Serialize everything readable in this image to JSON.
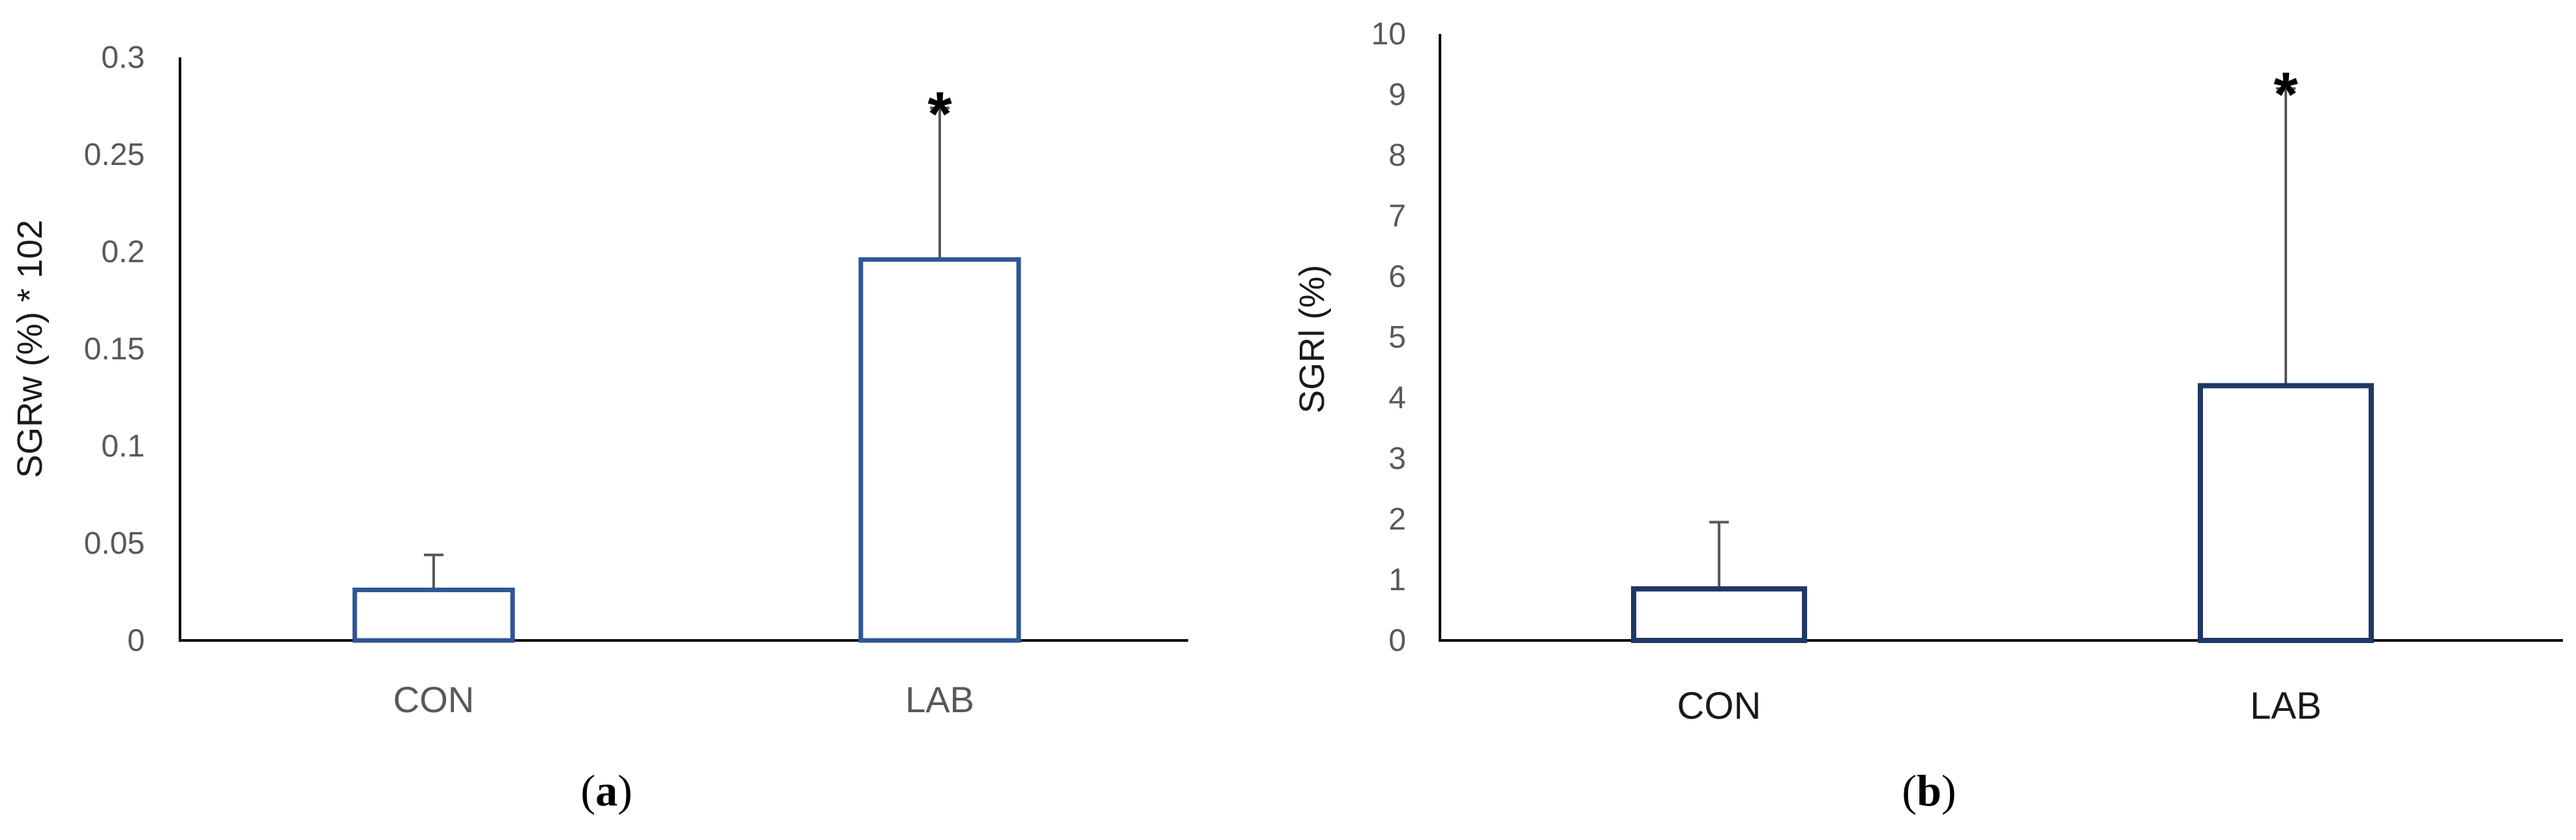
{
  "chart_data": [
    {
      "panel": "(a)",
      "panel_letter": "a",
      "type": "bar",
      "categories": [
        "CON",
        "LAB"
      ],
      "values": [
        0.026,
        0.196
      ],
      "error_plus": [
        0.018,
        0.078
      ],
      "annotations": [
        {
          "category": "LAB",
          "text": "*"
        }
      ],
      "title": "",
      "xlabel": "",
      "ylabel": "SGRw (%) * 102",
      "ylim": [
        0,
        0.3
      ],
      "yticks": [
        0,
        0.05,
        0.1,
        0.15,
        0.2,
        0.25,
        0.3
      ],
      "ytick_labels": [
        "0",
        "0.05",
        "0.1",
        "0.15",
        "0.2",
        "0.25",
        "0.3"
      ],
      "grid": false,
      "legend": "none",
      "bar_edge_color": "#2f5597",
      "bar_fill_color": "#ffffff",
      "error_bar_color": "#595959"
    },
    {
      "panel": "(b)",
      "panel_letter": "b",
      "type": "bar",
      "categories": [
        "CON",
        "LAB"
      ],
      "values": [
        0.85,
        4.2
      ],
      "error_plus": [
        1.1,
        4.9
      ],
      "annotations": [
        {
          "category": "LAB",
          "text": "*"
        }
      ],
      "title": "",
      "xlabel": "",
      "ylabel": "SGRl (%)",
      "ylim": [
        0,
        10
      ],
      "yticks": [
        0,
        1,
        2,
        3,
        4,
        5,
        6,
        7,
        8,
        9,
        10
      ],
      "ytick_labels": [
        "0",
        "1",
        "2",
        "3",
        "4",
        "5",
        "6",
        "7",
        "8",
        "9",
        "10"
      ],
      "grid": false,
      "legend": "none",
      "bar_edge_color": "#1f3864",
      "bar_fill_color": "#ffffff",
      "error_bar_color": "#595959"
    }
  ]
}
